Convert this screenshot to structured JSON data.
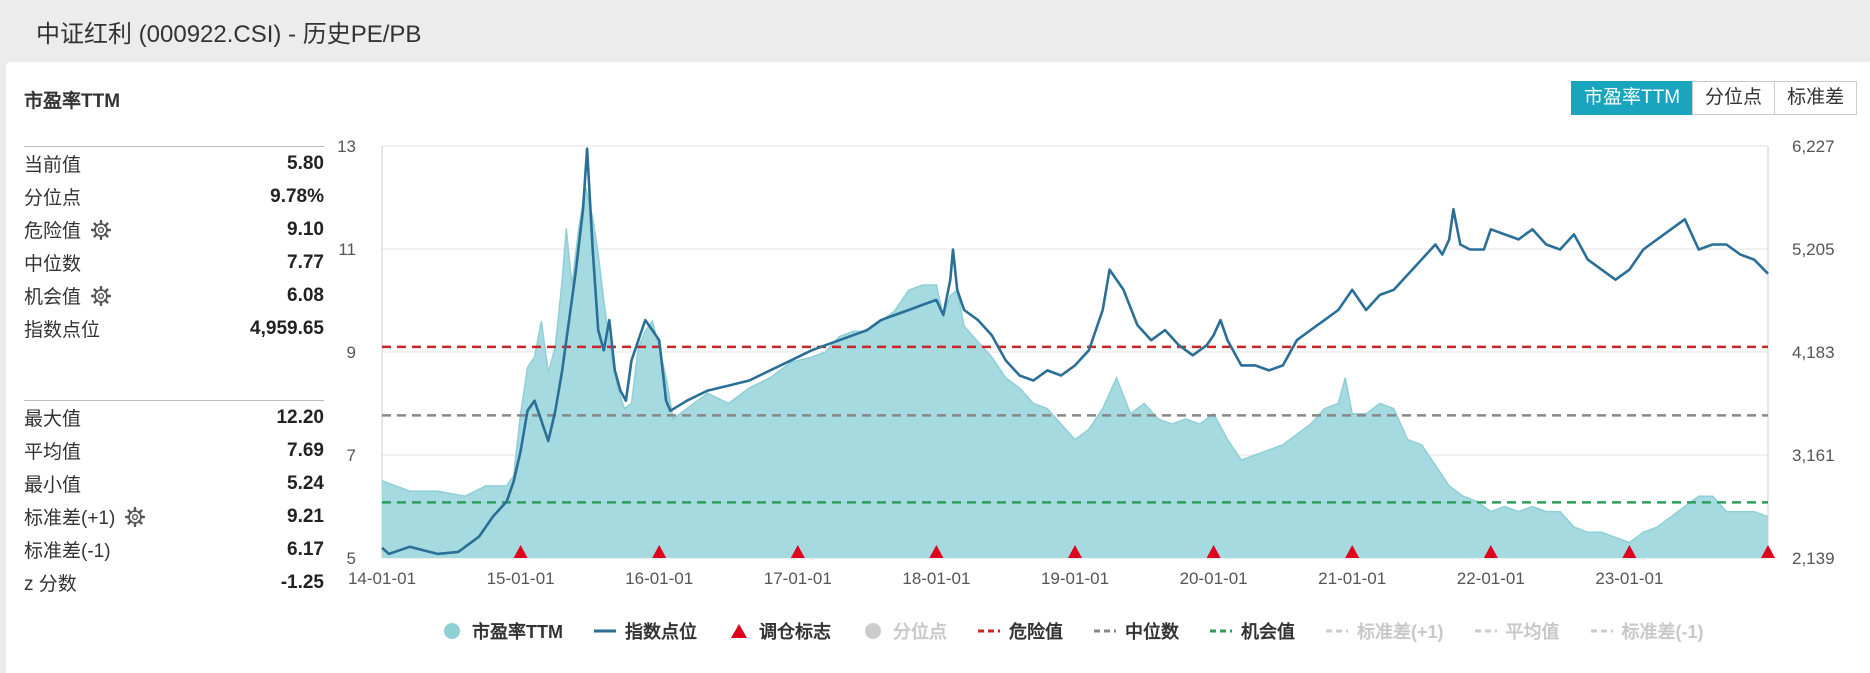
{
  "page_title": "中证红利 (000922.CSI) - 历史PE/PB",
  "panel_title": "市盈率TTM",
  "tabs": [
    {
      "label": "市盈率TTM",
      "active": true
    },
    {
      "label": "分位点",
      "active": false
    },
    {
      "label": "标准差",
      "active": false
    }
  ],
  "stats_top": [
    {
      "label": "当前值",
      "value": "5.80",
      "gear": false
    },
    {
      "label": "分位点",
      "value": "9.78%",
      "gear": false
    },
    {
      "label": "危险值",
      "value": "9.10",
      "gear": true
    },
    {
      "label": "中位数",
      "value": "7.77",
      "gear": false
    },
    {
      "label": "机会值",
      "value": "6.08",
      "gear": true
    },
    {
      "label": "指数点位",
      "value": "4,959.65",
      "gear": false
    }
  ],
  "stats_bottom": [
    {
      "label": "最大值",
      "value": "12.20",
      "gear": false
    },
    {
      "label": "平均值",
      "value": "7.69",
      "gear": false
    },
    {
      "label": "最小值",
      "value": "5.24",
      "gear": false
    },
    {
      "label": "标准差(+1)",
      "value": "9.21",
      "gear": true
    },
    {
      "label": "标准差(-1)",
      "value": "6.17",
      "gear": false
    },
    {
      "label": "z 分数",
      "value": "-1.25",
      "gear": false
    }
  ],
  "chart_data": {
    "type": "area",
    "title": "",
    "xlabel": "",
    "ylabel": "",
    "x_ticks": [
      "14-01-01",
      "15-01-01",
      "16-01-01",
      "17-01-01",
      "18-01-01",
      "19-01-01",
      "20-01-01",
      "21-01-01",
      "22-01-01",
      "23-01-01"
    ],
    "xlim": [
      2014.0,
      2024.0
    ],
    "y_left": {
      "ticks": [
        "5",
        "7",
        "9",
        "11",
        "13"
      ],
      "range": [
        5,
        13
      ]
    },
    "y_right": {
      "ticks": [
        "2,139",
        "3,161",
        "4,183",
        "5,205",
        "6,227"
      ],
      "range": [
        2139,
        6227
      ]
    },
    "colors": {
      "pe_fill": "#9fd8de",
      "pe_line": "#8fcfd6",
      "index": "#2a6f97",
      "danger": "#c62828",
      "median": "#888888",
      "opportunity": "#2e9e5b",
      "marker": "#e0001b"
    },
    "pe_ttm": [
      [
        2014.0,
        6.5
      ],
      [
        2014.2,
        6.3
      ],
      [
        2014.4,
        6.3
      ],
      [
        2014.6,
        6.2
      ],
      [
        2014.75,
        6.4
      ],
      [
        2014.9,
        6.4
      ],
      [
        2014.95,
        6.6
      ],
      [
        2015.0,
        7.8
      ],
      [
        2015.05,
        8.7
      ],
      [
        2015.1,
        8.9
      ],
      [
        2015.15,
        9.6
      ],
      [
        2015.2,
        8.6
      ],
      [
        2015.25,
        9.1
      ],
      [
        2015.3,
        10.4
      ],
      [
        2015.33,
        11.4
      ],
      [
        2015.37,
        10.3
      ],
      [
        2015.42,
        11.4
      ],
      [
        2015.47,
        12.2
      ],
      [
        2015.52,
        11.6
      ],
      [
        2015.56,
        10.9
      ],
      [
        2015.6,
        10.0
      ],
      [
        2015.65,
        9.0
      ],
      [
        2015.7,
        8.3
      ],
      [
        2015.75,
        7.9
      ],
      [
        2015.8,
        8.0
      ],
      [
        2015.85,
        9.1
      ],
      [
        2015.9,
        9.4
      ],
      [
        2015.95,
        9.6
      ],
      [
        2016.0,
        9.1
      ],
      [
        2016.05,
        8.5
      ],
      [
        2016.1,
        7.7
      ],
      [
        2016.2,
        7.9
      ],
      [
        2016.35,
        8.2
      ],
      [
        2016.5,
        8.0
      ],
      [
        2016.65,
        8.3
      ],
      [
        2016.8,
        8.5
      ],
      [
        2016.95,
        8.8
      ],
      [
        2017.1,
        8.9
      ],
      [
        2017.2,
        9.0
      ],
      [
        2017.3,
        9.3
      ],
      [
        2017.4,
        9.4
      ],
      [
        2017.5,
        9.4
      ],
      [
        2017.6,
        9.6
      ],
      [
        2017.7,
        9.8
      ],
      [
        2017.8,
        10.2
      ],
      [
        2017.9,
        10.3
      ],
      [
        2018.0,
        10.3
      ],
      [
        2018.05,
        9.7
      ],
      [
        2018.1,
        10.1
      ],
      [
        2018.15,
        10.2
      ],
      [
        2018.2,
        9.5
      ],
      [
        2018.3,
        9.2
      ],
      [
        2018.4,
        8.9
      ],
      [
        2018.5,
        8.5
      ],
      [
        2018.6,
        8.3
      ],
      [
        2018.7,
        8.0
      ],
      [
        2018.8,
        7.9
      ],
      [
        2018.9,
        7.6
      ],
      [
        2019.0,
        7.3
      ],
      [
        2019.1,
        7.5
      ],
      [
        2019.2,
        7.9
      ],
      [
        2019.3,
        8.5
      ],
      [
        2019.4,
        7.8
      ],
      [
        2019.5,
        8.0
      ],
      [
        2019.6,
        7.7
      ],
      [
        2019.7,
        7.6
      ],
      [
        2019.8,
        7.7
      ],
      [
        2019.9,
        7.6
      ],
      [
        2020.0,
        7.8
      ],
      [
        2020.1,
        7.3
      ],
      [
        2020.2,
        6.9
      ],
      [
        2020.3,
        7.0
      ],
      [
        2020.4,
        7.1
      ],
      [
        2020.5,
        7.2
      ],
      [
        2020.6,
        7.4
      ],
      [
        2020.7,
        7.6
      ],
      [
        2020.8,
        7.9
      ],
      [
        2020.9,
        8.0
      ],
      [
        2020.95,
        8.5
      ],
      [
        2021.0,
        7.8
      ],
      [
        2021.1,
        7.8
      ],
      [
        2021.2,
        8.0
      ],
      [
        2021.3,
        7.9
      ],
      [
        2021.4,
        7.3
      ],
      [
        2021.5,
        7.2
      ],
      [
        2021.6,
        6.8
      ],
      [
        2021.7,
        6.4
      ],
      [
        2021.8,
        6.2
      ],
      [
        2021.9,
        6.1
      ],
      [
        2022.0,
        5.9
      ],
      [
        2022.1,
        6.0
      ],
      [
        2022.2,
        5.9
      ],
      [
        2022.3,
        6.0
      ],
      [
        2022.4,
        5.9
      ],
      [
        2022.5,
        5.9
      ],
      [
        2022.6,
        5.6
      ],
      [
        2022.7,
        5.5
      ],
      [
        2022.8,
        5.5
      ],
      [
        2022.9,
        5.4
      ],
      [
        2023.0,
        5.3
      ],
      [
        2023.1,
        5.5
      ],
      [
        2023.2,
        5.6
      ],
      [
        2023.3,
        5.8
      ],
      [
        2023.4,
        6.0
      ],
      [
        2023.5,
        6.2
      ],
      [
        2023.6,
        6.2
      ],
      [
        2023.7,
        5.9
      ],
      [
        2023.8,
        5.9
      ],
      [
        2023.9,
        5.9
      ],
      [
        2024.0,
        5.8
      ]
    ],
    "index_points": [
      [
        2014.0,
        2240
      ],
      [
        2014.05,
        2180
      ],
      [
        2014.2,
        2250
      ],
      [
        2014.4,
        2180
      ],
      [
        2014.55,
        2200
      ],
      [
        2014.7,
        2350
      ],
      [
        2014.8,
        2550
      ],
      [
        2014.9,
        2700
      ],
      [
        2014.95,
        2900
      ],
      [
        2015.0,
        3200
      ],
      [
        2015.05,
        3600
      ],
      [
        2015.1,
        3700
      ],
      [
        2015.15,
        3500
      ],
      [
        2015.2,
        3300
      ],
      [
        2015.25,
        3600
      ],
      [
        2015.3,
        4000
      ],
      [
        2015.35,
        4500
      ],
      [
        2015.4,
        5000
      ],
      [
        2015.45,
        5600
      ],
      [
        2015.48,
        6200
      ],
      [
        2015.52,
        5200
      ],
      [
        2015.56,
        4400
      ],
      [
        2015.6,
        4200
      ],
      [
        2015.64,
        4500
      ],
      [
        2015.68,
        4000
      ],
      [
        2015.72,
        3800
      ],
      [
        2015.76,
        3700
      ],
      [
        2015.8,
        4100
      ],
      [
        2015.85,
        4300
      ],
      [
        2015.9,
        4500
      ],
      [
        2015.95,
        4400
      ],
      [
        2016.0,
        4300
      ],
      [
        2016.05,
        3700
      ],
      [
        2016.08,
        3600
      ],
      [
        2016.2,
        3700
      ],
      [
        2016.35,
        3800
      ],
      [
        2016.5,
        3850
      ],
      [
        2016.65,
        3900
      ],
      [
        2016.8,
        4000
      ],
      [
        2016.95,
        4100
      ],
      [
        2017.1,
        4200
      ],
      [
        2017.2,
        4250
      ],
      [
        2017.3,
        4300
      ],
      [
        2017.4,
        4350
      ],
      [
        2017.5,
        4400
      ],
      [
        2017.6,
        4500
      ],
      [
        2017.7,
        4550
      ],
      [
        2017.8,
        4600
      ],
      [
        2017.9,
        4650
      ],
      [
        2018.0,
        4700
      ],
      [
        2018.05,
        4550
      ],
      [
        2018.1,
        4900
      ],
      [
        2018.12,
        5200
      ],
      [
        2018.15,
        4800
      ],
      [
        2018.2,
        4600
      ],
      [
        2018.3,
        4500
      ],
      [
        2018.4,
        4350
      ],
      [
        2018.5,
        4100
      ],
      [
        2018.6,
        3950
      ],
      [
        2018.7,
        3900
      ],
      [
        2018.8,
        4000
      ],
      [
        2018.9,
        3950
      ],
      [
        2019.0,
        4050
      ],
      [
        2019.1,
        4200
      ],
      [
        2019.2,
        4600
      ],
      [
        2019.25,
        5000
      ],
      [
        2019.35,
        4800
      ],
      [
        2019.45,
        4450
      ],
      [
        2019.55,
        4300
      ],
      [
        2019.65,
        4400
      ],
      [
        2019.75,
        4250
      ],
      [
        2019.85,
        4150
      ],
      [
        2019.95,
        4250
      ],
      [
        2020.0,
        4350
      ],
      [
        2020.05,
        4500
      ],
      [
        2020.1,
        4300
      ],
      [
        2020.2,
        4050
      ],
      [
        2020.3,
        4050
      ],
      [
        2020.4,
        4000
      ],
      [
        2020.5,
        4050
      ],
      [
        2020.6,
        4300
      ],
      [
        2020.7,
        4400
      ],
      [
        2020.8,
        4500
      ],
      [
        2020.9,
        4600
      ],
      [
        2021.0,
        4800
      ],
      [
        2021.05,
        4700
      ],
      [
        2021.1,
        4600
      ],
      [
        2021.2,
        4750
      ],
      [
        2021.3,
        4800
      ],
      [
        2021.4,
        4950
      ],
      [
        2021.5,
        5100
      ],
      [
        2021.6,
        5250
      ],
      [
        2021.65,
        5150
      ],
      [
        2021.7,
        5300
      ],
      [
        2021.73,
        5600
      ],
      [
        2021.78,
        5250
      ],
      [
        2021.85,
        5200
      ],
      [
        2021.95,
        5200
      ],
      [
        2022.0,
        5400
      ],
      [
        2022.1,
        5350
      ],
      [
        2022.2,
        5300
      ],
      [
        2022.3,
        5400
      ],
      [
        2022.4,
        5250
      ],
      [
        2022.5,
        5200
      ],
      [
        2022.6,
        5350
      ],
      [
        2022.7,
        5100
      ],
      [
        2022.8,
        5000
      ],
      [
        2022.9,
        4900
      ],
      [
        2023.0,
        5000
      ],
      [
        2023.1,
        5200
      ],
      [
        2023.2,
        5300
      ],
      [
        2023.3,
        5400
      ],
      [
        2023.4,
        5500
      ],
      [
        2023.45,
        5350
      ],
      [
        2023.5,
        5200
      ],
      [
        2023.6,
        5250
      ],
      [
        2023.7,
        5250
      ],
      [
        2023.8,
        5150
      ],
      [
        2023.9,
        5100
      ],
      [
        2024.0,
        4960
      ]
    ],
    "danger_value": 9.1,
    "median_value": 7.77,
    "opportunity_value": 6.08,
    "rebalance_markers": [
      2015.0,
      2016.0,
      2017.0,
      2018.0,
      2019.0,
      2020.0,
      2021.0,
      2022.0,
      2023.0,
      2024.0
    ],
    "legend": [
      {
        "label": "市盈率TTM",
        "symbol": "circle",
        "color": "#8fcfd6",
        "active": true
      },
      {
        "label": "指数点位",
        "symbol": "line",
        "color": "#2a6f97",
        "active": true
      },
      {
        "label": "调仓标志",
        "symbol": "triangle",
        "color": "#e0001b",
        "active": true
      },
      {
        "label": "分位点",
        "symbol": "circle",
        "color": "#cccccc",
        "active": false
      },
      {
        "label": "危险值",
        "symbol": "dash",
        "color": "#c62828",
        "active": true
      },
      {
        "label": "中位数",
        "symbol": "dash",
        "color": "#888888",
        "active": true
      },
      {
        "label": "机会值",
        "symbol": "dash",
        "color": "#2e9e5b",
        "active": true
      },
      {
        "label": "标准差(+1)",
        "symbol": "dash",
        "color": "#cccccc",
        "active": false
      },
      {
        "label": "平均值",
        "symbol": "dash",
        "color": "#cccccc",
        "active": false
      },
      {
        "label": "标准差(-1)",
        "symbol": "dash",
        "color": "#cccccc",
        "active": false
      }
    ]
  }
}
